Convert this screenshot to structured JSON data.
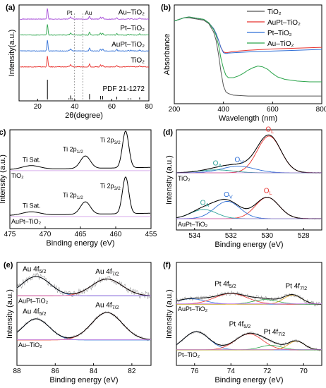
{
  "chart_data": [
    {
      "id": "a",
      "type": "line",
      "panel_label": "(a)",
      "xlabel": "2θ(degree)",
      "ylabel": "Intensity(a.u.)",
      "xlim": [
        10,
        80
      ],
      "xticks": [
        20,
        40,
        60,
        80
      ],
      "ref_lines": [
        {
          "x": 39.8,
          "label": "Pt"
        },
        {
          "x": 44.4,
          "label": "Au"
        }
      ],
      "peaks": [
        [
          25.3,
          1.0
        ],
        [
          36.9,
          0.06
        ],
        [
          37.8,
          0.2
        ],
        [
          38.6,
          0.06
        ],
        [
          48.0,
          0.28
        ],
        [
          53.9,
          0.18
        ],
        [
          55.1,
          0.18
        ],
        [
          62.7,
          0.14
        ],
        [
          68.8,
          0.06
        ],
        [
          70.3,
          0.06
        ],
        [
          75.0,
          0.1
        ]
      ],
      "series": [
        {
          "name": "PDF 21-1272",
          "color": "#000000",
          "style": "sticks",
          "offset": 0
        },
        {
          "name": "TiO2",
          "label": "TiO₂",
          "color": "#e8322e",
          "offset": 2.15
        },
        {
          "name": "AuPt-TiO2",
          "label": "AuPt–TiO₂",
          "color": "#2f6fd6",
          "offset": 3.2
        },
        {
          "name": "Pt-TiO2",
          "label": "Pt–TiO₂",
          "color": "#2aa44a",
          "offset": 4.25
        },
        {
          "name": "Au-TiO2",
          "label": "Au–TiO₂",
          "color": "#a64bd8",
          "offset": 5.3
        }
      ]
    },
    {
      "id": "b",
      "type": "line",
      "panel_label": "(b)",
      "xlabel": "Wavelength (nm)",
      "ylabel": "Absorbance",
      "xlim": [
        200,
        800
      ],
      "xticks": [
        200,
        400,
        600,
        800
      ],
      "legend": "top-right",
      "series": [
        {
          "name": "TiO2",
          "label": "TiO₂",
          "color": "#555555",
          "x": [
            200,
            220,
            240,
            260,
            280,
            300,
            320,
            340,
            360,
            370,
            380,
            390,
            400,
            410,
            420,
            440,
            500,
            600,
            700,
            800
          ],
          "y": [
            0.95,
            0.97,
            0.99,
            0.99,
            0.98,
            0.97,
            0.96,
            0.92,
            0.82,
            0.72,
            0.55,
            0.34,
            0.17,
            0.1,
            0.08,
            0.06,
            0.05,
            0.05,
            0.05,
            0.05
          ]
        },
        {
          "name": "AuPt-TiO2",
          "label": "AuPt–TiO₂",
          "color": "#e8322e",
          "x": [
            200,
            220,
            240,
            260,
            280,
            300,
            320,
            340,
            360,
            370,
            380,
            390,
            400,
            410,
            420,
            440,
            500,
            600,
            700,
            800
          ],
          "y": [
            0.95,
            0.97,
            0.99,
            1.0,
            0.99,
            0.98,
            0.97,
            0.93,
            0.86,
            0.8,
            0.72,
            0.63,
            0.58,
            0.57,
            0.575,
            0.585,
            0.6,
            0.615,
            0.625,
            0.635
          ]
        },
        {
          "name": "Pt-TiO2",
          "label": "Pt–TiO₂",
          "color": "#2f6fd6",
          "x": [
            200,
            220,
            240,
            260,
            280,
            300,
            320,
            340,
            360,
            370,
            380,
            390,
            400,
            410,
            420,
            440,
            500,
            600,
            700,
            800
          ],
          "y": [
            0.95,
            0.97,
            0.99,
            1.0,
            0.99,
            0.98,
            0.97,
            0.93,
            0.86,
            0.8,
            0.72,
            0.63,
            0.57,
            0.56,
            0.565,
            0.57,
            0.58,
            0.59,
            0.6,
            0.61
          ]
        },
        {
          "name": "Au-TiO2",
          "label": "Au–TiO₂",
          "color": "#2aa44a",
          "x": [
            200,
            220,
            240,
            260,
            280,
            300,
            320,
            340,
            360,
            370,
            380,
            390,
            400,
            410,
            420,
            440,
            460,
            480,
            500,
            520,
            540,
            560,
            580,
            600,
            620,
            650,
            700,
            750,
            800
          ],
          "y": [
            0.95,
            0.97,
            0.99,
            1.0,
            0.99,
            0.98,
            0.97,
            0.93,
            0.85,
            0.78,
            0.66,
            0.5,
            0.38,
            0.3,
            0.27,
            0.27,
            0.29,
            0.32,
            0.36,
            0.39,
            0.41,
            0.4,
            0.37,
            0.32,
            0.28,
            0.25,
            0.23,
            0.22,
            0.22
          ]
        }
      ]
    },
    {
      "id": "c",
      "type": "line",
      "panel_label": "(c)",
      "xlabel": "Binding energy (eV)",
      "ylabel": "Intensity (a.u.)",
      "xlim": [
        475,
        455
      ],
      "xticks": [
        475,
        470,
        465,
        460,
        455
      ],
      "curves": [
        {
          "sample": "TiO₂",
          "offset": 1.25,
          "color": "#000000",
          "peaks": [
            [
              458.6,
              1.0,
              0.9
            ],
            [
              464.3,
              0.34,
              1.4
            ],
            [
              472.0,
              0.1,
              2.5
            ]
          ]
        },
        {
          "sample": "AuPt–TiO₂",
          "offset": 0,
          "color": "#000000",
          "peaks": [
            [
              458.6,
              1.0,
              0.9
            ],
            [
              464.3,
              0.34,
              1.4
            ],
            [
              472.0,
              0.09,
              2.5
            ]
          ]
        }
      ],
      "labels": {
        "ti_sat": "Ti Sat.",
        "ti_2p12": "Ti 2p",
        "ti_2p12_sub": "1/2",
        "ti_2p32": "Ti 2p",
        "ti_2p32_sub": "3/2"
      }
    },
    {
      "id": "d",
      "type": "line",
      "panel_label": "(d)",
      "xlabel": "Binding energy (eV)",
      "ylabel": "Intensity (a.u.)",
      "xlim": [
        535,
        527
      ],
      "xticks": [
        534,
        532,
        530,
        528
      ],
      "curves": [
        {
          "sample": "TiO₂",
          "offset": 1.25,
          "components": [
            {
              "name": "OL",
              "color": "#e8322e",
              "center": 529.9,
              "amp": 1.0,
              "width": 0.65
            },
            {
              "name": "OV",
              "color": "#2f6fd6",
              "center": 531.6,
              "amp": 0.18,
              "width": 0.9
            },
            {
              "name": "OA",
              "color": "#2aa198",
              "center": 532.8,
              "amp": 0.08,
              "width": 0.9
            }
          ]
        },
        {
          "sample": "AuPt–TiO₂",
          "offset": 0,
          "components": [
            {
              "name": "OL",
              "color": "#e8322e",
              "center": 530.0,
              "amp": 0.58,
              "width": 0.65
            },
            {
              "name": "OV",
              "color": "#2f6fd6",
              "center": 532.2,
              "amp": 0.47,
              "width": 0.7
            },
            {
              "name": "OA",
              "color": "#2aa198",
              "center": 533.5,
              "amp": 0.25,
              "width": 0.7
            }
          ]
        }
      ],
      "labels": {
        "o": "O",
        "sub_a": "A",
        "sub_v": "V",
        "sub_l": "L"
      }
    },
    {
      "id": "e",
      "type": "line",
      "panel_label": "(e)",
      "xlabel": "Binding energy (eV)",
      "ylabel": "Intensity (a.u.)",
      "xlim": [
        88,
        81
      ],
      "xticks": [
        88,
        86,
        84,
        82
      ],
      "curves": [
        {
          "sample": "AuPt–TiO₂",
          "offset": 1.25,
          "peaks": [
            {
              "label": "Au 4f5/2",
              "center": 87.0,
              "amp": 0.55,
              "width": 0.75
            },
            {
              "label": "Au 4f7/2",
              "center": 83.3,
              "amp": 0.48,
              "width": 0.8
            }
          ]
        },
        {
          "sample": "Au–TiO₂",
          "offset": 0,
          "peaks": [
            {
              "label": "Au 4f5/2",
              "center": 87.0,
              "amp": 0.6,
              "width": 0.7
            },
            {
              "label": "Au 4f7/2",
              "center": 83.3,
              "amp": 0.78,
              "width": 0.8
            }
          ]
        }
      ],
      "labels": {
        "au": "Au 4f",
        "sub_52": "5/2",
        "sub_72": "7/2"
      }
    },
    {
      "id": "f",
      "type": "line",
      "panel_label": "(f)",
      "xlabel": "Binding energy (eV)",
      "ylabel": "Intensity (a.u.)",
      "xlim": [
        77,
        69
      ],
      "xticks": [
        76,
        74,
        72,
        70
      ],
      "curves": [
        {
          "sample": "AuPt–TiO₂",
          "offset": 1.2,
          "peaks": [
            {
              "center": 76.2,
              "amp": 0.14,
              "width": 0.8
            },
            {
              "center": 74.0,
              "amp": 0.28,
              "width": 0.9
            },
            {
              "center": 72.1,
              "amp": 0.12,
              "width": 0.7
            },
            {
              "center": 70.6,
              "amp": 0.24,
              "width": 0.5
            }
          ]
        },
        {
          "sample": "Pt–TiO₂",
          "offset": 0,
          "peaks": [
            {
              "center": 75.9,
              "amp": 0.48,
              "width": 0.7
            },
            {
              "center": 73.0,
              "amp": 0.42,
              "width": 0.75
            },
            {
              "center": 71.8,
              "amp": 0.12,
              "width": 0.6
            },
            {
              "center": 70.4,
              "amp": 0.23,
              "width": 0.45
            }
          ]
        }
      ],
      "labels": {
        "pt": "Pt 4f",
        "sub_52": "5/2",
        "sub_72": "7/2"
      }
    }
  ]
}
